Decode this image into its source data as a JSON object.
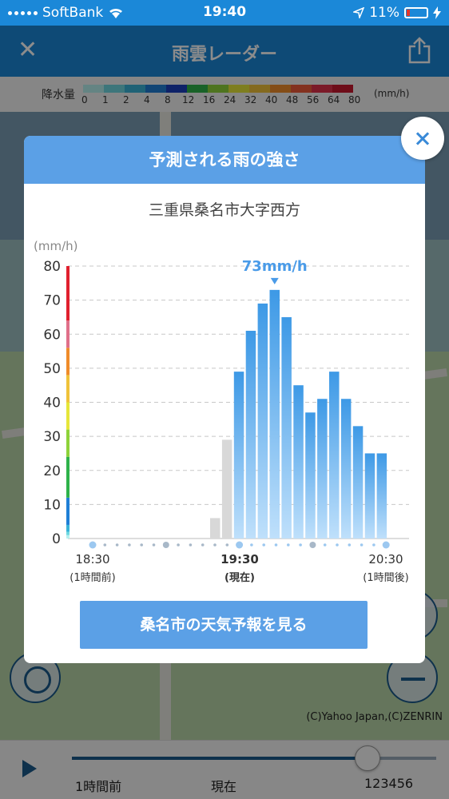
{
  "status_bar": {
    "carrier": "SoftBank",
    "time": "19:40",
    "battery": "11%"
  },
  "header": {
    "title": "雨雲レーダー"
  },
  "legend": {
    "label": "降水量",
    "unit": "(mm/h)",
    "ticks": [
      "0",
      "1",
      "2",
      "4",
      "8",
      "12",
      "16",
      "24",
      "32",
      "40",
      "48",
      "56",
      "64",
      "80"
    ],
    "colors": [
      "#b6f0ef",
      "#6fd8e0",
      "#39b3d8",
      "#1f7fd6",
      "#1b3fbd",
      "#2eb24a",
      "#8ed33a",
      "#e6e63a",
      "#f0c23a",
      "#f08c2a",
      "#ee5a3a",
      "#e0304a",
      "#c8182e"
    ]
  },
  "popup": {
    "title": "予測される雨の強さ",
    "place": "三重県桑名市大字西方",
    "forecast_button": "桑名市の天気予報を見る"
  },
  "chart_data": {
    "type": "bar",
    "ylabel": "(mm/h)",
    "ylim": [
      0,
      80
    ],
    "yticks": [
      0,
      10,
      20,
      30,
      40,
      50,
      60,
      70,
      80
    ],
    "x_tick_labels": [
      {
        "time": "18:30",
        "sub": "(1時間前)"
      },
      {
        "time": "19:30",
        "sub": "(現在)"
      },
      {
        "time": "20:30",
        "sub": "(1時間後)"
      }
    ],
    "peak_label": "73mm/h",
    "past_values": [
      0,
      0,
      0,
      0,
      0,
      0,
      0,
      0,
      0,
      0,
      0,
      6,
      29
    ],
    "forecast_values": [
      49,
      61,
      69,
      73,
      65,
      45,
      37,
      41,
      49,
      41,
      33,
      25,
      25
    ],
    "past_color": "#d8d8d8",
    "forecast_color": "#3d99e6"
  },
  "bottom": {
    "left_label": "1時間前",
    "mid_label": "現在",
    "right_label": "123456"
  },
  "map": {
    "credit": "(C)Yahoo Japan,(C)ZENRIN"
  }
}
